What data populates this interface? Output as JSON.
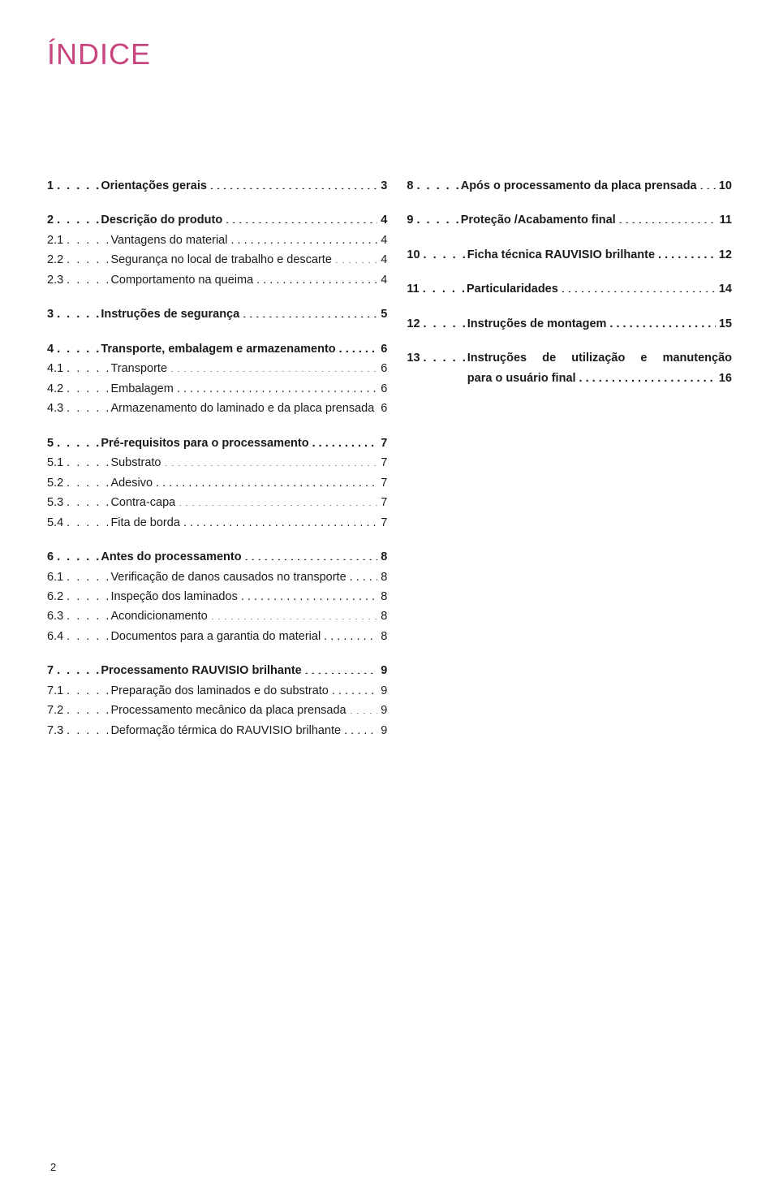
{
  "title": "ÍNDICE",
  "page_number": "2",
  "leader_dot": ". ",
  "left_col": [
    {
      "num": "1",
      "title": "Orientações gerais",
      "page": "3",
      "bold": true,
      "gap_after": true
    },
    {
      "num": "2",
      "title": "Descrição do produto",
      "page": "4",
      "bold": true
    },
    {
      "num": "2.1",
      "title": "Vantagens do material",
      "page": "4",
      "bold": false
    },
    {
      "num": "2.2",
      "title": "Segurança no local de trabalho e descarte",
      "page": "4",
      "bold": false
    },
    {
      "num": "2.3",
      "title": "Comportamento na queima",
      "page": "4",
      "bold": false,
      "gap_after": true
    },
    {
      "num": "3",
      "title": "Instruções de segurança",
      "page": "5",
      "bold": true,
      "gap_after": true
    },
    {
      "num": "4",
      "title": "Transporte, embalagem e armazenamento",
      "page": "6",
      "bold": true
    },
    {
      "num": "4.1",
      "title": "Transporte",
      "page": "6",
      "bold": false
    },
    {
      "num": "4.2",
      "title": "Embalagem",
      "page": "6",
      "bold": false
    },
    {
      "num": "4.3",
      "title": "Armazenamento do laminado e da placa prensada",
      "page": "6",
      "bold": false,
      "gap_after": true
    },
    {
      "num": "5",
      "title": "Pré-requisitos para o processamento",
      "page": "7",
      "bold": true
    },
    {
      "num": "5.1",
      "title": "Substrato",
      "page": "7",
      "bold": false
    },
    {
      "num": "5.2",
      "title": "Adesivo",
      "page": "7",
      "bold": false
    },
    {
      "num": "5.3",
      "title": "Contra-capa",
      "page": "7",
      "bold": false
    },
    {
      "num": "5.4",
      "title": "Fita de borda",
      "page": "7",
      "bold": false,
      "gap_after": true
    },
    {
      "num": "6",
      "title": "Antes do processamento",
      "page": "8",
      "bold": true
    },
    {
      "num": "6.1",
      "title": "Verificação de danos causados no transporte",
      "page": "8",
      "bold": false
    },
    {
      "num": "6.2",
      "title": "Inspeção dos laminados",
      "page": "8",
      "bold": false
    },
    {
      "num": "6.3",
      "title": "Acondicionamento",
      "page": "8",
      "bold": false
    },
    {
      "num": "6.4",
      "title": "Documentos para a garantia do material",
      "page": "8",
      "bold": false,
      "gap_after": true
    },
    {
      "num": "7",
      "title": "Processamento RAUVISIO brilhante",
      "page": "9",
      "bold": true
    },
    {
      "num": "7.1",
      "title": "Preparação dos laminados e do substrato",
      "page": "9",
      "bold": false
    },
    {
      "num": "7.2",
      "title": "Processamento mecânico da placa prensada",
      "page": "9",
      "bold": false
    },
    {
      "num": "7.3",
      "title": "Deformação térmica do RAUVISIO brilhante",
      "page": "9",
      "bold": false
    }
  ],
  "right_col": [
    {
      "num": "8",
      "title": "Após o processamento da placa prensada",
      "page": "10",
      "bold": true,
      "gap_after": true
    },
    {
      "num": "9",
      "title": "Proteção /Acabamento final",
      "page": "11",
      "bold": true,
      "gap_after": true
    },
    {
      "num": "10",
      "title": "Ficha técnica RAUVISIO brilhante",
      "page": "12",
      "bold": true,
      "gap_after": true
    },
    {
      "num": "11",
      "title": "Particularidades",
      "page": "14",
      "bold": true,
      "gap_after": true
    },
    {
      "num": "12",
      "title": "Instruções de montagem",
      "page": "15",
      "bold": true,
      "gap_after": true
    }
  ],
  "entry13": {
    "num": "13",
    "title_line1": "Instruções de utilização e manutenção",
    "title_line2": "para o usuário final",
    "page": "16",
    "bold": true
  }
}
